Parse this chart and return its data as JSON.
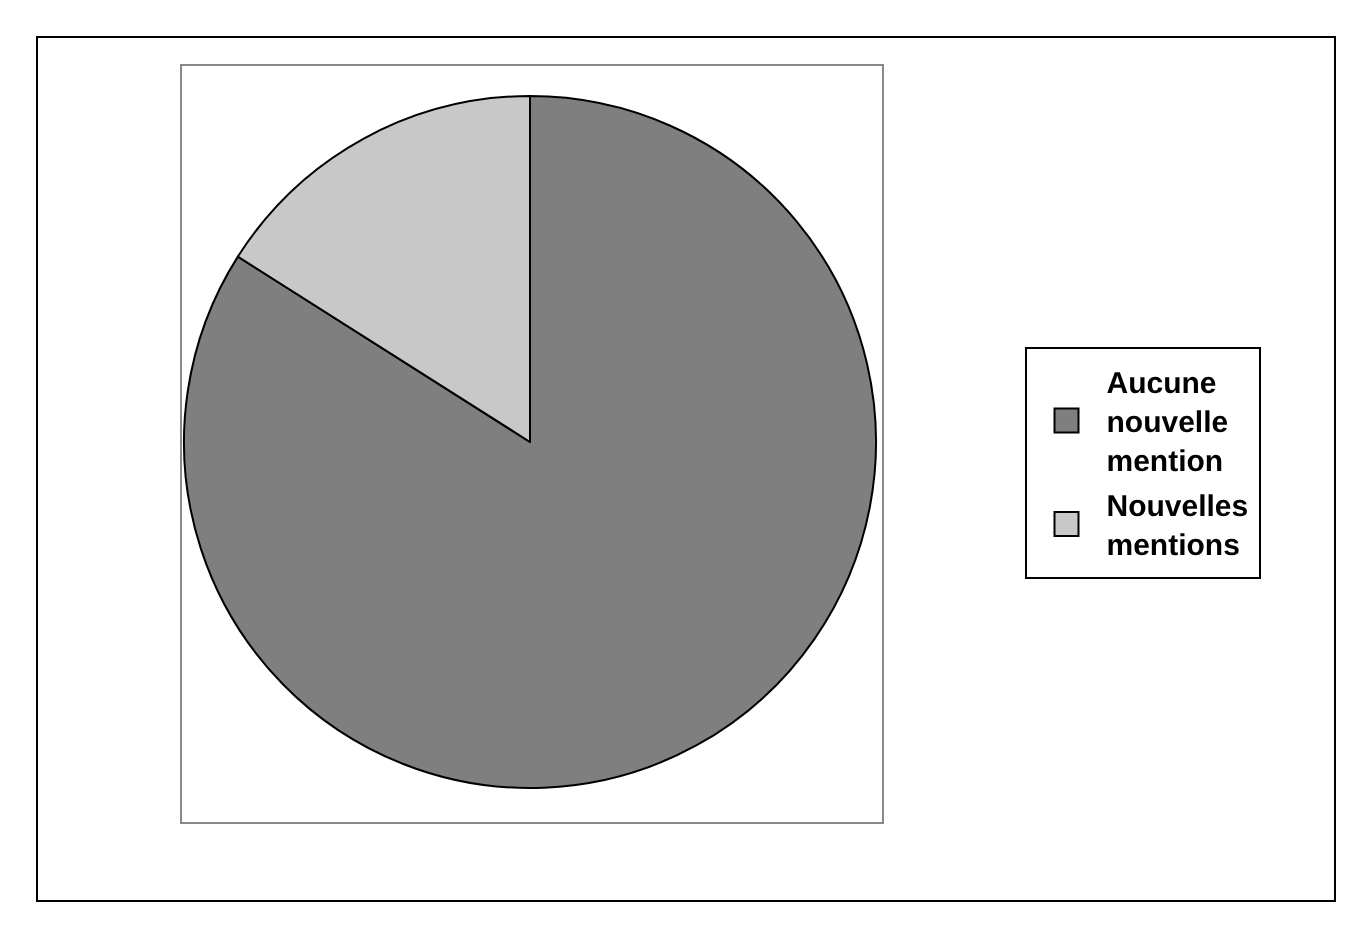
{
  "chart_data": {
    "type": "pie",
    "categories": [
      "Aucune nouvelle mention",
      "Nouvelles mentions"
    ],
    "values": [
      84,
      16
    ],
    "colors": [
      "#7f7f7f",
      "#c8c8c8"
    ],
    "legend": "right"
  }
}
